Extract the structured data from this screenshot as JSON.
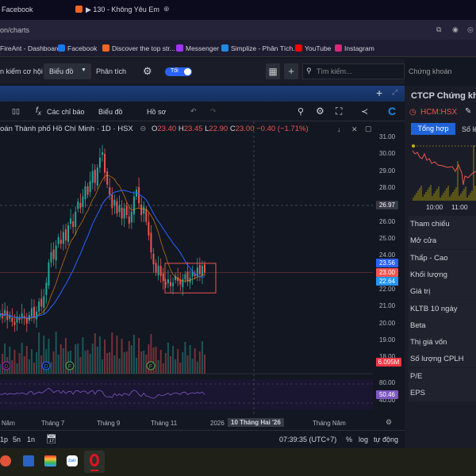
{
  "browser": {
    "tabs": [
      {
        "label": "Facebook"
      },
      {
        "label": "▶ 130 - Không Yêu Em"
      }
    ],
    "url": "on/charts",
    "bookmarks": [
      "FireAnt - Dashboard",
      "Facebook",
      "Discover the top str...",
      "Messenger",
      "Simplize - Phân Tích...",
      "YouTube",
      "Instagram"
    ]
  },
  "app": {
    "nav": [
      "n kiếm cơ hội",
      "Biểu đồ",
      "Phân tích"
    ],
    "theme_toggle": "Tối",
    "search_placeholder": "Tìm kiếm...",
    "search_scope": "Chứng khoán"
  },
  "chart_toolbar": {
    "indicators": "Các chỉ báo",
    "chart_type": "Biểu đồ",
    "profile": "Hồ sơ"
  },
  "legend": {
    "title": "oán Thành phố Hồ Chí Minh · 1D · HSX",
    "o_label": "O",
    "o": "23.40",
    "h_label": "H",
    "h": "23.45",
    "l_label": "L",
    "l": "22.90",
    "c_label": "C",
    "c": "23.00",
    "change": "−0.40 (−1.71%)"
  },
  "price_axis": [
    "31.00",
    "30.00",
    "29.00",
    "28.00",
    "26.00",
    "25.00",
    "24.00",
    "22.00",
    "21.00",
    "20.00",
    "19.00",
    "18.00"
  ],
  "tags": {
    "crosshair": "26.97",
    "ma1": "23.56",
    "last": "23.00",
    "ma2": "22.64",
    "volume": "6.095M",
    "rsi": "50.46"
  },
  "rsi_axis": [
    "80.00",
    "40.00"
  ],
  "time_axis": [
    "Năm",
    "Tháng 7",
    "Tháng 9",
    "Tháng 11",
    "2026",
    "Tháng Năm"
  ],
  "crosshair_date": "10 Tháng Hai '26",
  "bottom": {
    "ranges": [
      "1p",
      "5n",
      "1n"
    ],
    "clock": "07:39:35 (UTC+7)",
    "pct": "%",
    "log": "log",
    "auto": "tự động"
  },
  "events": [
    "D",
    "D",
    "F",
    "F"
  ],
  "colors": {
    "up": "#26a69a",
    "down": "#ef5350",
    "accent": "#2962ff",
    "rsi": "#7e57c2"
  },
  "side": {
    "title": "CTCP Chứng kho",
    "ticker": "HCM:HSX",
    "tabs": [
      "Tổng hợp",
      "Số lệ"
    ],
    "times": [
      "10:00",
      "11:00"
    ],
    "rows": [
      "Tham chiếu",
      "Mở cửa",
      "Thấp - Cao",
      "Khối lượng",
      "Giá trị",
      "KLTB 10 ngày",
      "Beta",
      "Thị giá vốn",
      "Số lượng CPLH",
      "P/E",
      "EPS"
    ]
  },
  "chart_data": {
    "type": "candlestick",
    "closes": [
      20.6,
      20.3,
      20.8,
      20.2,
      20.5,
      20.1,
      19.9,
      20.4,
      20.2,
      20.6,
      20.3,
      20.0,
      20.5,
      20.9,
      20.4,
      20.7,
      21.3,
      21.0,
      21.6,
      22.4,
      23.6,
      24.2,
      23.8,
      24.6,
      25.1,
      24.7,
      25.4,
      24.9,
      25.8,
      26.2,
      25.7,
      26.6,
      27.2,
      26.8,
      27.5,
      28.1,
      27.6,
      28.4,
      29.0,
      28.3,
      29.2,
      29.8,
      30.1,
      28.9,
      28.2,
      27.6,
      26.8,
      27.3,
      26.5,
      27.0,
      26.2,
      26.8,
      26.4,
      25.9,
      26.6,
      27.5,
      27.9,
      27.1,
      26.4,
      26.9,
      26.0,
      25.2,
      24.2,
      23.5,
      23.0,
      23.4,
      22.8,
      22.5,
      22.3,
      22.6,
      22.2,
      22.4,
      22.8,
      22.5,
      22.3,
      22.6,
      22.9,
      22.5,
      22.7,
      23.1,
      22.8,
      23.3,
      22.9,
      23.4,
      23.0
    ]
  }
}
